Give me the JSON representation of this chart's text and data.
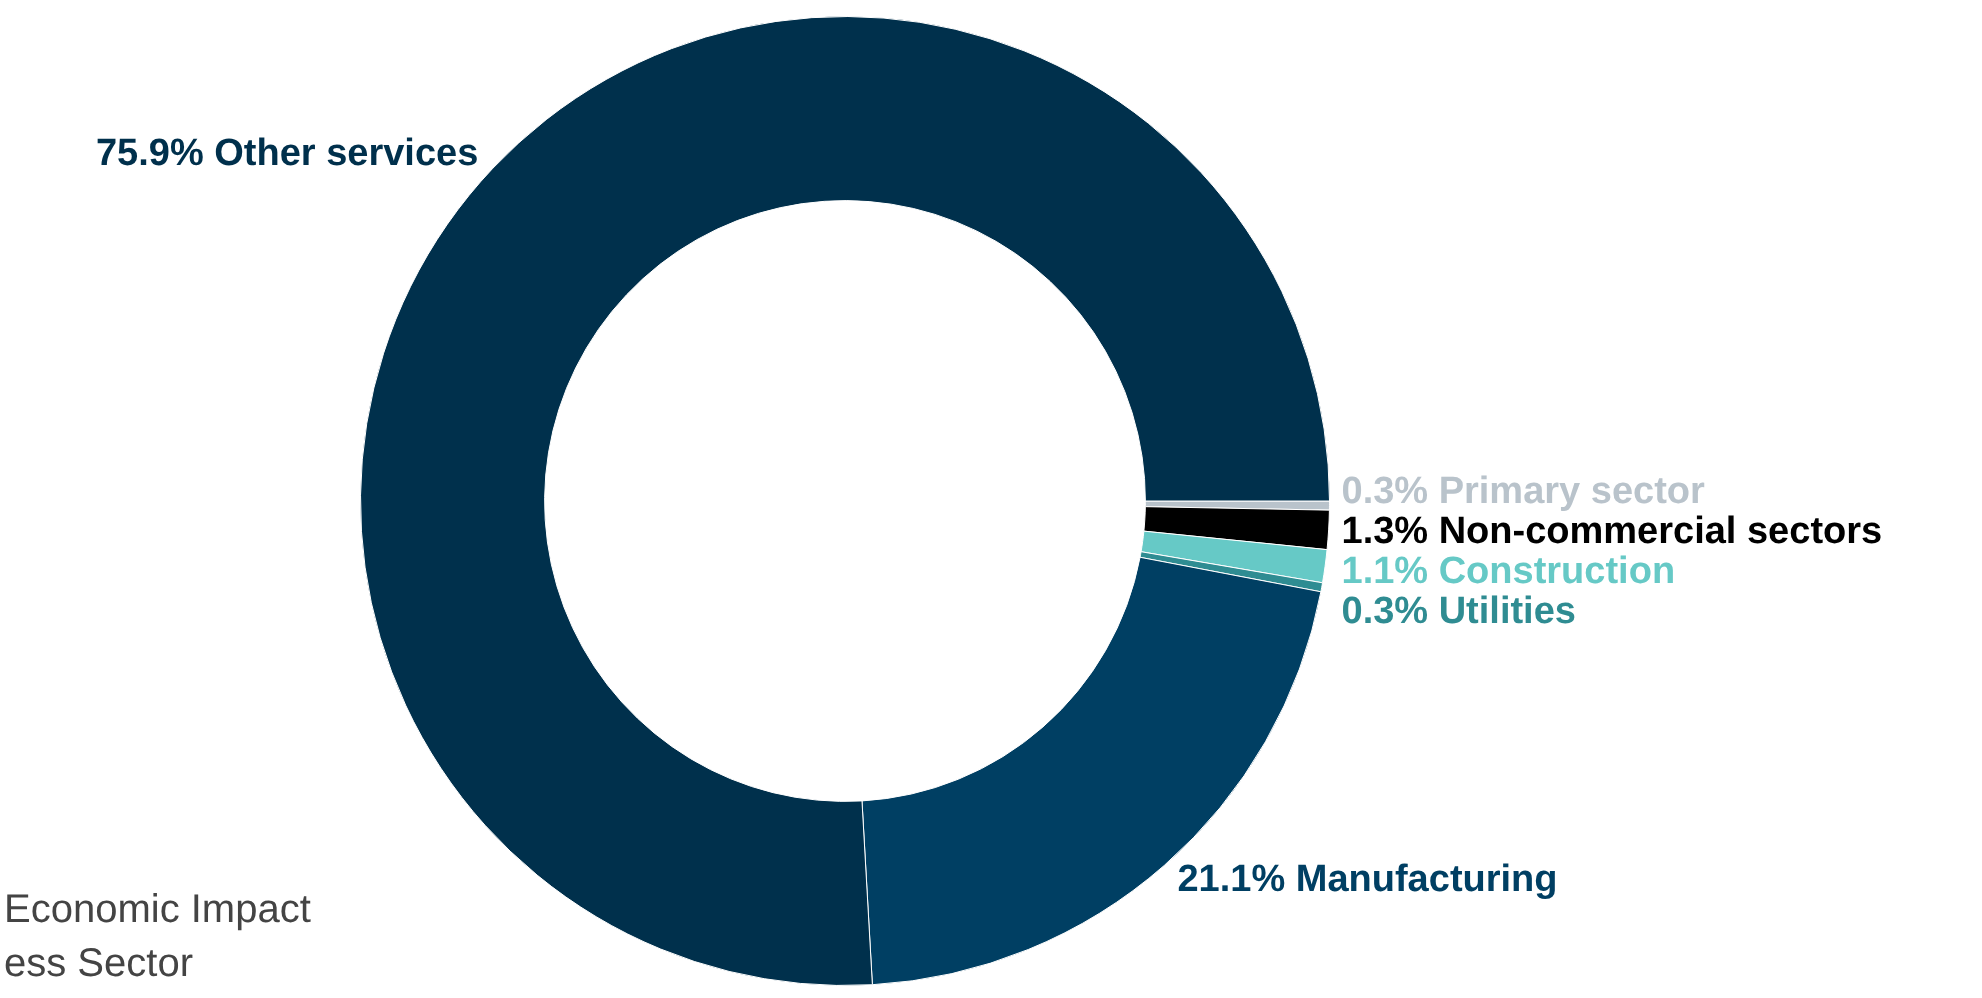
{
  "chart_data": {
    "type": "donut",
    "categories": [
      "Primary sector",
      "Non-commercial sectors",
      "Construction",
      "Utilities",
      "Manufacturing",
      "Other services"
    ],
    "values": [
      0.3,
      1.3,
      1.1,
      0.3,
      21.1,
      75.9
    ],
    "value_labels": [
      "0.3%",
      "1.3%",
      "1.1%",
      "0.3%",
      "21.1%",
      "75.9%"
    ],
    "colors": [
      "#b9c3cb",
      "#000000",
      "#66c9c6",
      "#2f8c92",
      "#003f63",
      "#00304c"
    ],
    "annotations": [
      "Economic Impact",
      "ess Sector"
    ],
    "legend": false
  }
}
